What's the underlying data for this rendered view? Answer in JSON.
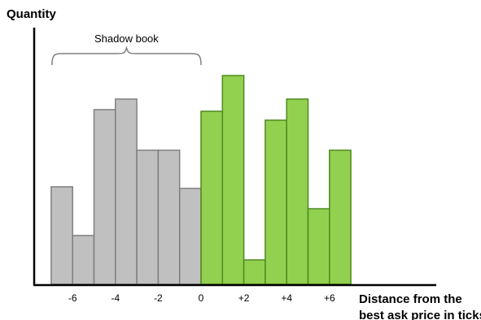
{
  "chart_data": {
    "type": "bar",
    "ylabel": "Quantity",
    "xlabel_line1": "Distance from the",
    "xlabel_line2": "best ask price in ticks",
    "annotation": "Shadow book",
    "x_ticks": [
      "-6",
      "-4",
      "-2",
      "0",
      "+2",
      "+4",
      "+6"
    ],
    "x_tick_values": [
      -6,
      -4,
      -2,
      0,
      2,
      4,
      6
    ],
    "bars": [
      {
        "x": -6.5,
        "value": 120,
        "group": "shadow"
      },
      {
        "x": -5.5,
        "value": 60,
        "group": "shadow"
      },
      {
        "x": -4.5,
        "value": 215,
        "group": "shadow"
      },
      {
        "x": -3.5,
        "value": 228,
        "group": "shadow"
      },
      {
        "x": -2.5,
        "value": 165,
        "group": "shadow"
      },
      {
        "x": -1.5,
        "value": 165,
        "group": "shadow"
      },
      {
        "x": -0.5,
        "value": 118,
        "group": "shadow"
      },
      {
        "x": 0.5,
        "value": 213,
        "group": "book"
      },
      {
        "x": 1.5,
        "value": 257,
        "group": "book"
      },
      {
        "x": 2.5,
        "value": 30,
        "group": "book"
      },
      {
        "x": 3.5,
        "value": 202,
        "group": "book"
      },
      {
        "x": 4.5,
        "value": 228,
        "group": "book"
      },
      {
        "x": 5.5,
        "value": 93,
        "group": "book"
      },
      {
        "x": 6.5,
        "value": 165,
        "group": "book"
      }
    ],
    "colors": {
      "shadow_fill": "#c0c0c0",
      "shadow_stroke": "#7f7f7f",
      "book_fill": "#92d050",
      "book_stroke": "#4f8a1e",
      "axis": "#000000",
      "brace": "#7f7f7f"
    },
    "brace_range": [
      -7,
      0
    ],
    "xlim": [
      -7.8,
      12
    ],
    "ylim": [
      0,
      310
    ]
  }
}
